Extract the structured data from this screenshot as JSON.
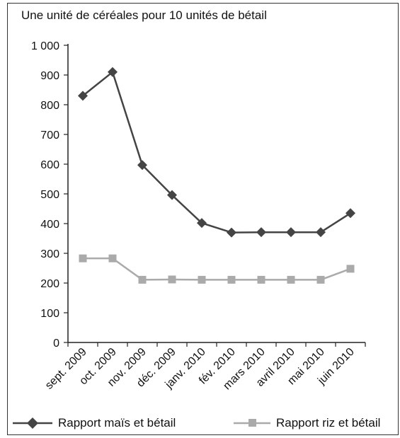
{
  "chart_data": {
    "type": "line",
    "title": "Une unité de céréales pour 10 unités de bétail",
    "categories": [
      "sept. 2009",
      "oct. 2009",
      "nov. 2009",
      "déc. 2009",
      "janv. 2010",
      "fév. 2010",
      "mars 2010",
      "avril 2010",
      "mai 2010",
      "juin 2010"
    ],
    "yticks": [
      "0",
      "100",
      "200",
      "300",
      "400",
      "500",
      "600",
      "700",
      "800",
      "900",
      "1 000"
    ],
    "ylim": [
      0,
      1000
    ],
    "grid": false,
    "legend_position": "bottom",
    "series": [
      {
        "name": "Rapport maïs et bétail",
        "color": "#444444",
        "marker": "diamond",
        "values": [
          830,
          910,
          597,
          496,
          402,
          370,
          371,
          371,
          371,
          435
        ]
      },
      {
        "name": "Rapport riz et bétail",
        "color": "#aaaaaa",
        "marker": "square",
        "values": [
          283,
          283,
          211,
          212,
          211,
          211,
          211,
          211,
          211,
          248
        ]
      }
    ]
  }
}
